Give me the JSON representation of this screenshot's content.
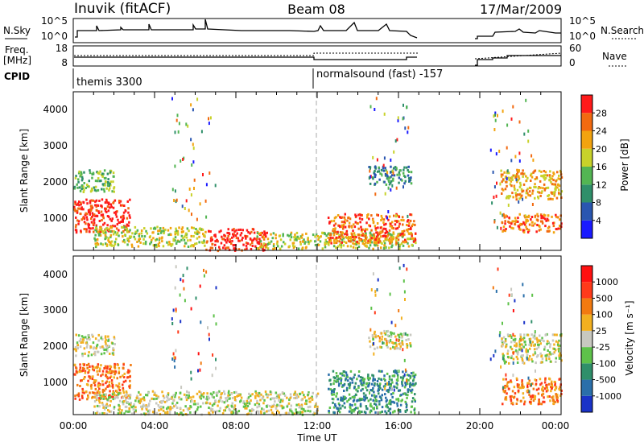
{
  "header": {
    "station": "Inuvik (fitACF)",
    "beam": "Beam 08",
    "date": "17/Mar/2009"
  },
  "noise_panel": {
    "left_label": "N.Sky",
    "right_label": "N.Search",
    "left_ticks": [
      "10^5",
      "10^0"
    ],
    "right_ticks": [
      "10^5",
      "10^0"
    ]
  },
  "freq_panel": {
    "left_label_1": "Freq.",
    "left_label_2": "[MHz]",
    "right_label": "Nave",
    "left_ticks": [
      "18",
      "8"
    ],
    "right_ticks": [
      "60",
      "0"
    ]
  },
  "cpid": {
    "label": "CPID",
    "segments": [
      "themis 3300",
      "normalsound (fast) -157"
    ]
  },
  "x_axis": {
    "label": "Time UT",
    "ticks": [
      "00:00",
      "04:00",
      "08:00",
      "12:00",
      "16:00",
      "20:00",
      "00:00"
    ]
  },
  "power_panel": {
    "ylabel": "Slant Range [km]",
    "yticks": [
      "1000",
      "2000",
      "3000",
      "4000"
    ],
    "colorbar_label": "Power [dB]",
    "colorbar_ticks": [
      "4",
      "8",
      "12",
      "16",
      "20",
      "24",
      "28"
    ],
    "colors": [
      "#1a1aff",
      "#2a56b0",
      "#2f8f6a",
      "#53b553",
      "#c8d22a",
      "#f2a30f",
      "#f26a10",
      "#ff1a1a"
    ]
  },
  "velocity_panel": {
    "ylabel": "Slant Range [km]",
    "yticks": [
      "1000",
      "2000",
      "3000",
      "4000"
    ],
    "colorbar_label": "Velocity [m s⁻¹]",
    "colorbar_ticks": [
      "1000",
      "500",
      "100",
      "25",
      "-25",
      "-100",
      "-500",
      "-1000"
    ],
    "colors": [
      "#1a33c8",
      "#2a6faa",
      "#2f8f6a",
      "#5ec24a",
      "#c8c8c0",
      "#f2b020",
      "#f27a10",
      "#ff3a1a",
      "#ff1010"
    ]
  },
  "chart_data": {
    "type": "heatmap",
    "x_range": [
      "00:00",
      "24:00"
    ],
    "y_range": [
      180,
      4500
    ],
    "power_regions": [
      {
        "t0": 0.0,
        "t1": 2.8,
        "r0": 700,
        "r1": 1600,
        "level": 7
      },
      {
        "t0": 0.0,
        "t1": 2.0,
        "r0": 1800,
        "r1": 2400,
        "level": 3
      },
      {
        "t0": 1.0,
        "t1": 6.5,
        "r0": 300,
        "r1": 850,
        "level": 4
      },
      {
        "t0": 6.5,
        "t1": 9.5,
        "r0": 200,
        "r1": 800,
        "level": 7
      },
      {
        "t0": 9.0,
        "t1": 16.8,
        "r0": 250,
        "r1": 700,
        "level": 4
      },
      {
        "t0": 12.5,
        "t1": 16.8,
        "r0": 400,
        "r1": 1200,
        "level": 6
      },
      {
        "t0": 14.5,
        "t1": 16.6,
        "r0": 2000,
        "r1": 2500,
        "level": 2
      },
      {
        "t0": 21.0,
        "t1": 24.0,
        "r0": 700,
        "r1": 1200,
        "level": 6
      },
      {
        "t0": 21.0,
        "t1": 24.0,
        "r0": 1600,
        "r1": 2400,
        "level": 5
      }
    ],
    "velocity_regions": [
      {
        "t0": 0.0,
        "t1": 2.8,
        "r0": 600,
        "r1": 1600,
        "level": 6
      },
      {
        "t0": 0.0,
        "t1": 2.0,
        "r0": 1800,
        "r1": 2400,
        "level": 4
      },
      {
        "t0": 1.0,
        "t1": 12.0,
        "r0": 200,
        "r1": 850,
        "level": 4
      },
      {
        "t0": 12.5,
        "t1": 16.8,
        "r0": 250,
        "r1": 1400,
        "level": 2
      },
      {
        "t0": 14.5,
        "t1": 16.6,
        "r0": 2000,
        "r1": 2500,
        "level": 4
      },
      {
        "t0": 21.0,
        "t1": 24.0,
        "r0": 500,
        "r1": 1200,
        "level": 6
      },
      {
        "t0": 21.0,
        "t1": 24.0,
        "r0": 1600,
        "r1": 2400,
        "level": 4
      }
    ]
  }
}
